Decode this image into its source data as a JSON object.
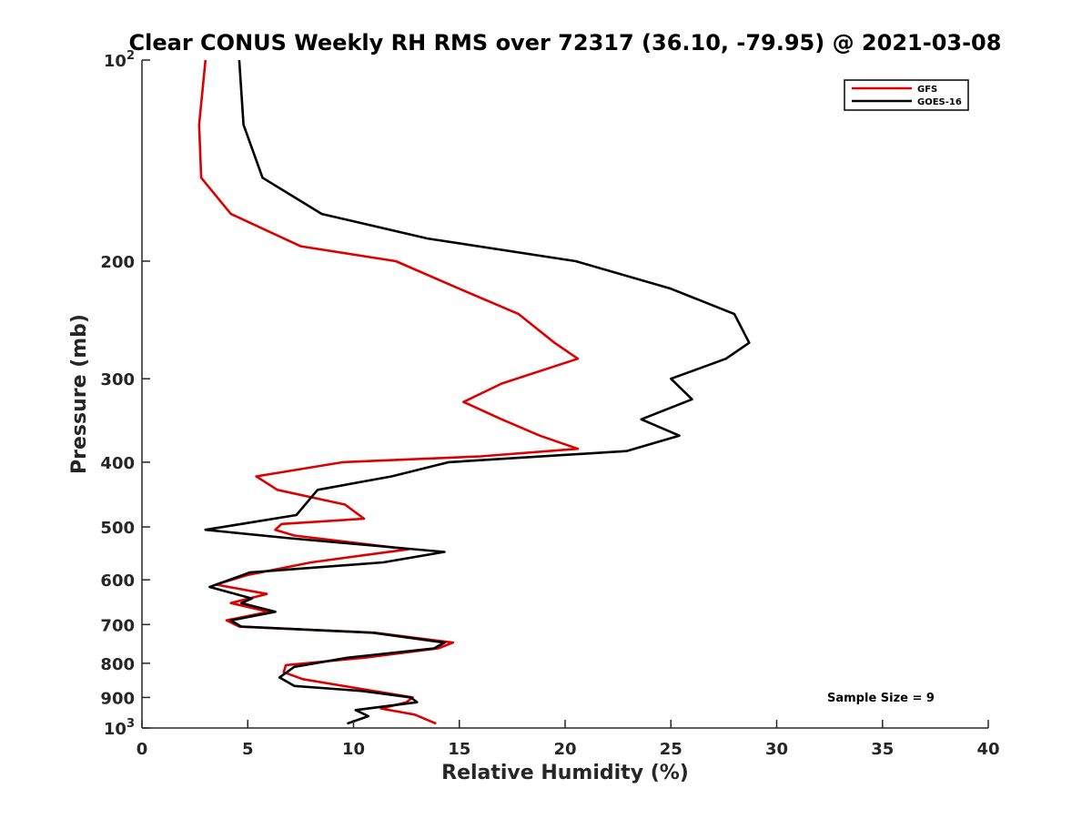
{
  "chart_data": {
    "type": "line",
    "title": "Clear CONUS Weekly RH RMS over 72317 (36.10, -79.95) @ 2021-03-08",
    "xlabel": "Relative Humidity (%)",
    "ylabel": "Pressure (mb)",
    "xlim": [
      0,
      40
    ],
    "ylim": [
      100,
      1000
    ],
    "yscale": "log",
    "y_inverted": true,
    "grid": false,
    "legend_position": "top-right",
    "x_ticks": [
      {
        "value": 0,
        "label": "0"
      },
      {
        "value": 5,
        "label": "5"
      },
      {
        "value": 10,
        "label": "10"
      },
      {
        "value": 15,
        "label": "15"
      },
      {
        "value": 20,
        "label": "20"
      },
      {
        "value": 25,
        "label": "25"
      },
      {
        "value": 30,
        "label": "30"
      },
      {
        "value": 35,
        "label": "35"
      },
      {
        "value": 40,
        "label": "40"
      }
    ],
    "y_ticks": [
      {
        "value": 100,
        "label": "10",
        "sup": "2"
      },
      {
        "value": 200,
        "label": "200"
      },
      {
        "value": 300,
        "label": "300"
      },
      {
        "value": 400,
        "label": "400"
      },
      {
        "value": 500,
        "label": "500"
      },
      {
        "value": 600,
        "label": "600"
      },
      {
        "value": 700,
        "label": "700"
      },
      {
        "value": 800,
        "label": "800"
      },
      {
        "value": 900,
        "label": "900"
      },
      {
        "value": 1000,
        "label": "10",
        "sup": "3"
      }
    ],
    "annotation": "Sample Size = 9",
    "series": [
      {
        "name": "GFS",
        "color": "#dd0000",
        "points": [
          [
            3.0,
            100
          ],
          [
            2.7,
            125
          ],
          [
            2.8,
            150
          ],
          [
            4.2,
            170
          ],
          [
            7.5,
            190
          ],
          [
            12.0,
            200
          ],
          [
            15.0,
            220
          ],
          [
            17.8,
            240
          ],
          [
            19.5,
            265
          ],
          [
            20.6,
            280
          ],
          [
            17.0,
            305
          ],
          [
            15.2,
            325
          ],
          [
            17.0,
            345
          ],
          [
            18.8,
            365
          ],
          [
            20.6,
            382
          ],
          [
            16.0,
            392
          ],
          [
            9.5,
            400
          ],
          [
            5.4,
            420
          ],
          [
            6.4,
            440
          ],
          [
            9.6,
            463
          ],
          [
            10.5,
            486
          ],
          [
            6.6,
            495
          ],
          [
            6.3,
            505
          ],
          [
            7.2,
            515
          ],
          [
            12.6,
            540
          ],
          [
            8.0,
            565
          ],
          [
            5.0,
            590
          ],
          [
            3.5,
            610
          ],
          [
            5.9,
            630
          ],
          [
            4.2,
            650
          ],
          [
            6.0,
            670
          ],
          [
            4.0,
            690
          ],
          [
            4.6,
            705
          ],
          [
            11.0,
            720
          ],
          [
            14.7,
            745
          ],
          [
            14.0,
            760
          ],
          [
            10.5,
            785
          ],
          [
            6.8,
            805
          ],
          [
            6.7,
            825
          ],
          [
            7.6,
            845
          ],
          [
            10.0,
            870
          ],
          [
            12.8,
            900
          ],
          [
            12.5,
            915
          ],
          [
            11.3,
            935
          ],
          [
            12.9,
            955
          ],
          [
            13.9,
            985
          ]
        ]
      },
      {
        "name": "GOES-16",
        "color": "#000000",
        "points": [
          [
            4.6,
            100
          ],
          [
            4.8,
            125
          ],
          [
            5.7,
            150
          ],
          [
            8.5,
            170
          ],
          [
            13.5,
            185
          ],
          [
            20.5,
            200
          ],
          [
            25.0,
            220
          ],
          [
            28.0,
            240
          ],
          [
            28.7,
            265
          ],
          [
            27.6,
            280
          ],
          [
            25.0,
            300
          ],
          [
            26.0,
            322
          ],
          [
            23.6,
            345
          ],
          [
            25.4,
            365
          ],
          [
            22.9,
            385
          ],
          [
            14.5,
            400
          ],
          [
            11.8,
            420
          ],
          [
            8.3,
            440
          ],
          [
            7.3,
            480
          ],
          [
            3.0,
            505
          ],
          [
            7.0,
            520
          ],
          [
            14.3,
            545
          ],
          [
            11.4,
            565
          ],
          [
            5.1,
            585
          ],
          [
            3.2,
            615
          ],
          [
            5.2,
            640
          ],
          [
            4.7,
            650
          ],
          [
            6.3,
            670
          ],
          [
            4.2,
            690
          ],
          [
            4.7,
            705
          ],
          [
            10.9,
            720
          ],
          [
            14.3,
            745
          ],
          [
            13.8,
            760
          ],
          [
            9.7,
            785
          ],
          [
            7.2,
            810
          ],
          [
            6.5,
            840
          ],
          [
            7.2,
            865
          ],
          [
            10.4,
            880
          ],
          [
            12.7,
            900
          ],
          [
            13.0,
            915
          ],
          [
            10.1,
            940
          ],
          [
            10.7,
            960
          ],
          [
            9.7,
            985
          ]
        ]
      }
    ]
  }
}
